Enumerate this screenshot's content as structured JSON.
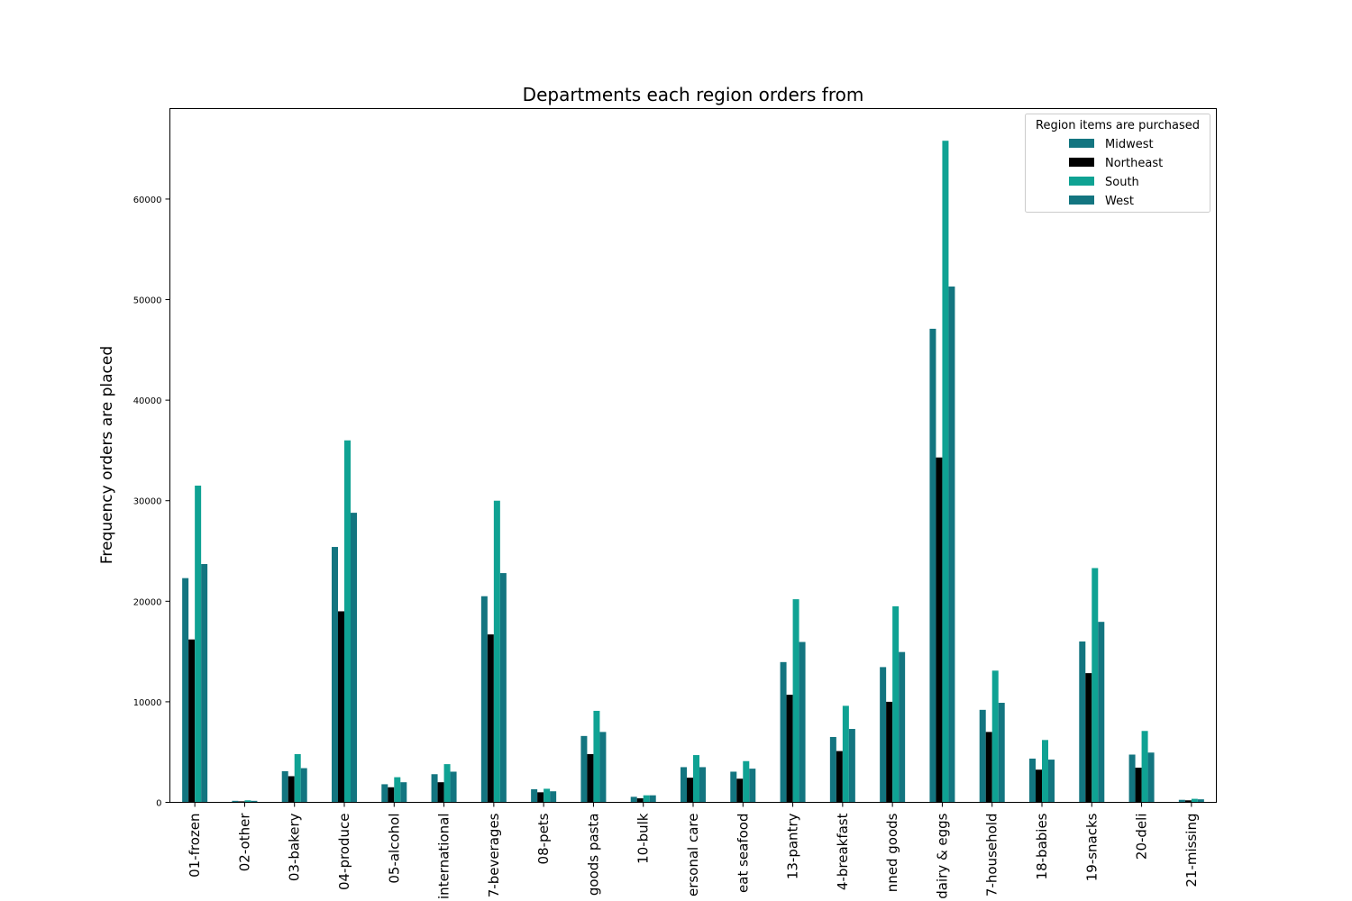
{
  "chart_data": {
    "type": "bar",
    "title": "Departments each region orders from",
    "xlabel": "",
    "ylabel": "Frequency orders are placed",
    "ylim": [
      0,
      69000
    ],
    "yticks": [
      0,
      10000,
      20000,
      30000,
      40000,
      50000,
      60000
    ],
    "ytick_labels": [
      "0",
      "10000",
      "20000",
      "30000",
      "40000",
      "50000",
      "60000"
    ],
    "grid": false,
    "legend_title": "Region items are purchased",
    "legend_position": "top-right",
    "categories": [
      "01-frozen",
      "02-other",
      "03-bakery",
      "04-produce",
      "05-alcohol",
      "international",
      "7-beverages",
      "08-pets",
      "goods pasta",
      "10-bulk",
      "ersonal care",
      "eat seafood",
      "13-pantry",
      "4-breakfast",
      "nned goods",
      "dairy & eggs",
      "7-household",
      "18-babies",
      "19-snacks",
      "20-deli",
      "21-missing"
    ],
    "series": [
      {
        "name": "Midwest",
        "color": "#137580",
        "values": [
          22300,
          150,
          3100,
          25400,
          1800,
          2800,
          20500,
          1300,
          6600,
          550,
          3500,
          3050,
          13950,
          6500,
          13450,
          47100,
          9200,
          4350,
          16000,
          4750,
          250
        ]
      },
      {
        "name": "Northeast",
        "color": "#000000",
        "values": [
          16200,
          100,
          2600,
          19000,
          1500,
          2000,
          16700,
          1000,
          4800,
          400,
          2450,
          2350,
          10700,
          5100,
          10000,
          34300,
          7000,
          3250,
          12850,
          3450,
          200
        ]
      },
      {
        "name": "South",
        "color": "#0fa293",
        "values": [
          31500,
          200,
          4800,
          36000,
          2500,
          3800,
          30000,
          1350,
          9100,
          700,
          4700,
          4100,
          20200,
          9600,
          19500,
          65800,
          13100,
          6200,
          23300,
          7100,
          350
        ]
      },
      {
        "name": "West",
        "color": "#137580",
        "values": [
          23700,
          150,
          3400,
          28800,
          2000,
          3050,
          22800,
          1100,
          7000,
          700,
          3500,
          3350,
          15950,
          7300,
          14950,
          51300,
          9900,
          4250,
          17950,
          4950,
          300
        ]
      }
    ]
  }
}
